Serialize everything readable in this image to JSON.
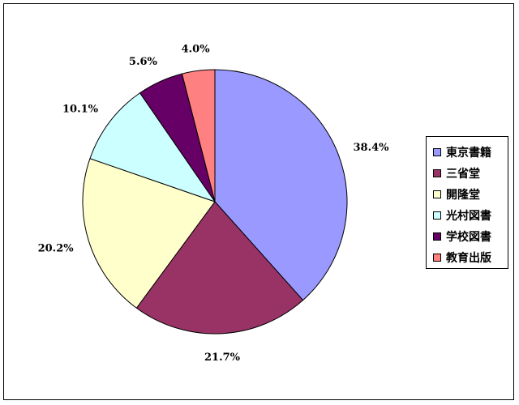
{
  "chart_data": {
    "type": "pie",
    "title": "",
    "categories": [
      "東京書籍",
      "三省堂",
      "開隆堂",
      "光村図書",
      "学校図書",
      "教育出版"
    ],
    "values": [
      38.4,
      21.7,
      20.2,
      10.1,
      5.6,
      4.0
    ],
    "labels": [
      "38.4%",
      "21.7%",
      "20.2%",
      "10.1%",
      "5.6%",
      "4.0%"
    ],
    "colors": [
      "#9999FF",
      "#993366",
      "#FFFFCC",
      "#CCFFFF",
      "#660066",
      "#FF8080"
    ],
    "start_angle_deg": 0,
    "direction": "clockwise",
    "legend": "right"
  }
}
